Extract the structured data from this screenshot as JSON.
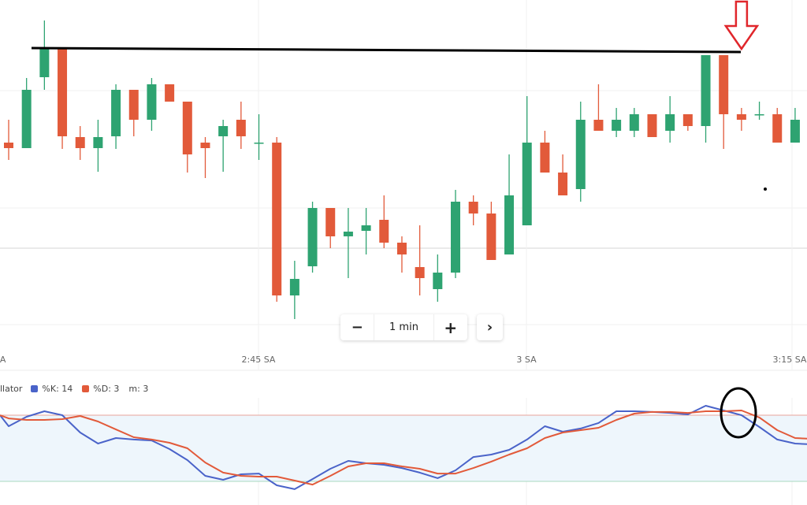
{
  "chart_data": [
    {
      "type": "candlestick",
      "interval": "1 min",
      "x_tick_labels": [
        "SA",
        "2:45 SA",
        "3 SA",
        "3:15 SA"
      ],
      "price_units": "arbitrary (no price axis shown)",
      "up_color": "#2ea371",
      "down_color": "#e25a3a",
      "grid": true,
      "candles": [
        {
          "o": 239,
          "h": 268,
          "l": 217,
          "c": 232
        },
        {
          "o": 232,
          "h": 321,
          "l": 232,
          "c": 306
        },
        {
          "o": 322,
          "h": 394,
          "l": 306,
          "c": 358
        },
        {
          "o": 358,
          "h": 358,
          "l": 231,
          "c": 247
        },
        {
          "o": 246,
          "h": 260,
          "l": 217,
          "c": 232
        },
        {
          "o": 232,
          "h": 268,
          "l": 202,
          "c": 246
        },
        {
          "o": 247,
          "h": 313,
          "l": 231,
          "c": 306
        },
        {
          "o": 306,
          "h": 306,
          "l": 247,
          "c": 268
        },
        {
          "o": 268,
          "h": 321,
          "l": 254,
          "c": 313
        },
        {
          "o": 313,
          "h": 313,
          "l": 291,
          "c": 291
        },
        {
          "o": 291,
          "h": 291,
          "l": 201,
          "c": 224
        },
        {
          "o": 239,
          "h": 246,
          "l": 194,
          "c": 232
        },
        {
          "o": 247,
          "h": 268,
          "l": 202,
          "c": 260
        },
        {
          "o": 268,
          "h": 291,
          "l": 231,
          "c": 247
        },
        {
          "o": 239,
          "h": 275,
          "l": 217,
          "c": 239
        },
        {
          "o": 239,
          "h": 246,
          "l": 37,
          "c": 45
        },
        {
          "o": 45,
          "h": 89,
          "l": 15,
          "c": 66
        },
        {
          "o": 82,
          "h": 164,
          "l": 74,
          "c": 156
        },
        {
          "o": 156,
          "h": 156,
          "l": 105,
          "c": 120
        },
        {
          "o": 120,
          "h": 156,
          "l": 67,
          "c": 126
        },
        {
          "o": 127,
          "h": 156,
          "l": 97,
          "c": 134
        },
        {
          "o": 141,
          "h": 172,
          "l": 105,
          "c": 112
        },
        {
          "o": 112,
          "h": 120,
          "l": 74,
          "c": 97
        },
        {
          "o": 81,
          "h": 134,
          "l": 45,
          "c": 67
        },
        {
          "o": 53,
          "h": 97,
          "l": 37,
          "c": 74
        },
        {
          "o": 74,
          "h": 179,
          "l": 67,
          "c": 164
        },
        {
          "o": 164,
          "h": 172,
          "l": 134,
          "c": 149
        },
        {
          "o": 149,
          "h": 164,
          "l": 90,
          "c": 90
        },
        {
          "o": 97,
          "h": 224,
          "l": 97,
          "c": 172
        },
        {
          "o": 134,
          "h": 298,
          "l": 134,
          "c": 239
        },
        {
          "o": 239,
          "h": 254,
          "l": 201,
          "c": 201
        },
        {
          "o": 201,
          "h": 224,
          "l": 172,
          "c": 172
        },
        {
          "o": 180,
          "h": 291,
          "l": 164,
          "c": 268
        },
        {
          "o": 268,
          "h": 313,
          "l": 254,
          "c": 254
        },
        {
          "o": 254,
          "h": 283,
          "l": 246,
          "c": 268
        },
        {
          "o": 254,
          "h": 283,
          "l": 246,
          "c": 275
        },
        {
          "o": 275,
          "h": 275,
          "l": 246,
          "c": 246
        },
        {
          "o": 254,
          "h": 298,
          "l": 239,
          "c": 275
        },
        {
          "o": 275,
          "h": 275,
          "l": 254,
          "c": 260
        },
        {
          "o": 260,
          "h": 350,
          "l": 239,
          "c": 350
        },
        {
          "o": 350,
          "h": 350,
          "l": 231,
          "c": 275
        },
        {
          "o": 275,
          "h": 283,
          "l": 254,
          "c": 268
        },
        {
          "o": 275,
          "h": 291,
          "l": 268,
          "c": 275
        },
        {
          "o": 275,
          "h": 283,
          "l": 239,
          "c": 239
        },
        {
          "o": 239,
          "h": 283,
          "l": 239,
          "c": 268
        }
      ]
    },
    {
      "type": "line",
      "title_fragment": "llator",
      "legend_placement": "top-left",
      "ylim": [
        0,
        100
      ],
      "levels": [
        {
          "value": 80,
          "color": "#e8a49a"
        },
        {
          "value": 20,
          "color": "#a8d8bf"
        }
      ],
      "band_color": "#eef6fc",
      "series": [
        {
          "name": "%K: 14",
          "color": "#4a63c9",
          "values": [
            70,
            78.6,
            83.6,
            80,
            64.3,
            54.3,
            59.3,
            57.9,
            57.1,
            49.3,
            39.3,
            25,
            21.4,
            26.4,
            27.1,
            16.4,
            12.9,
            22.1,
            31.4,
            38.6,
            36.4,
            35,
            32.1,
            27.9,
            22.9,
            30,
            42.1,
            44.3,
            48.6,
            57.9,
            70,
            65,
            67.9,
            72.9,
            83.6,
            83.6,
            82.9,
            82.1,
            80.7,
            88.6,
            84.3,
            80,
            69.3,
            57.9,
            54.3
          ]
        },
        {
          "name": "%D: 3",
          "color": "#e25a3a",
          "values": [
            77.1,
            75.7,
            75.7,
            76.4,
            79.3,
            74.3,
            67.1,
            60,
            57.9,
            55,
            50,
            37.1,
            27.9,
            25,
            24.3,
            24.3,
            20.7,
            17.1,
            25,
            33.6,
            36.4,
            36.4,
            33.6,
            31.4,
            27.1,
            27.1,
            32.1,
            37.9,
            44.3,
            50,
            59.3,
            64.3,
            66.4,
            68.6,
            75.7,
            81.4,
            82.9,
            82.9,
            82.1,
            83.6,
            83.6,
            84.3,
            77.9,
            66.4,
            59.3
          ]
        }
      ],
      "extra_legend": "m: 3"
    }
  ],
  "annotations": {
    "resistance_line_color": "#000000",
    "arrow_color": "#e0262b",
    "arrow_points_to_candle": 42,
    "circle_color": "#000000"
  },
  "toolbar": {
    "minus_label": "−",
    "interval_label": "1 min",
    "plus_label": "+",
    "next_label": "›"
  }
}
